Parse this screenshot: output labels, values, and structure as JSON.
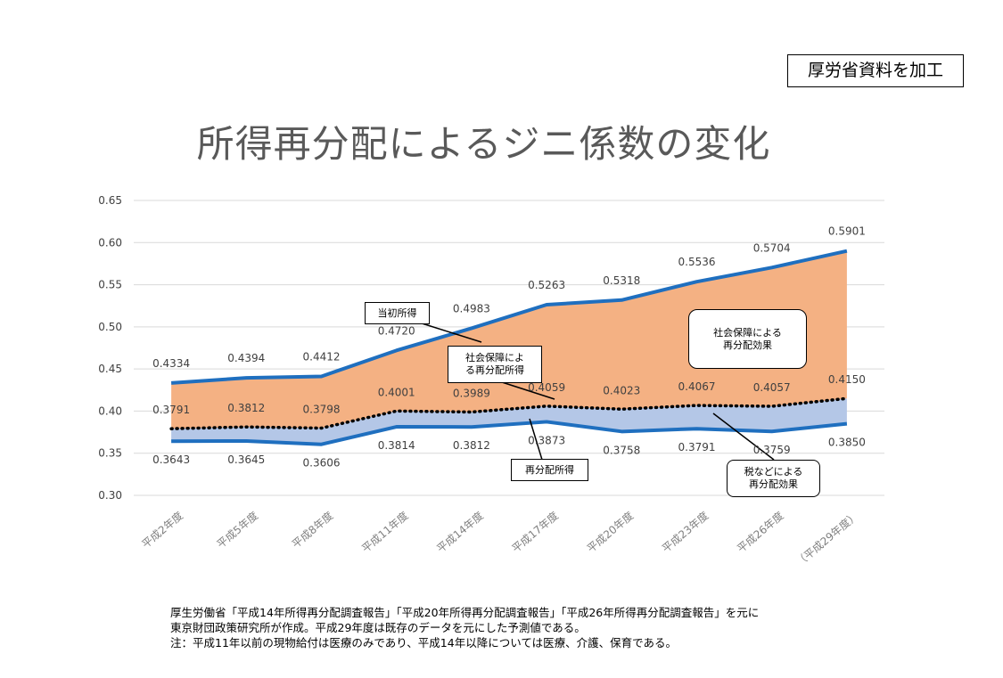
{
  "source_label": "厚労省資料を加工",
  "chart_data": {
    "type": "area",
    "title": "所得再分配によるジニ係数の変化",
    "categories": [
      "平成2年度",
      "平成5年度",
      "平成8年度",
      "平成11年度",
      "平成14年度",
      "平成17年度",
      "平成20年度",
      "平成23年度",
      "平成26年度",
      "（平成29年度）"
    ],
    "ylim": [
      0.3,
      0.65
    ],
    "yticks": [
      "0.30",
      "0.35",
      "0.40",
      "0.45",
      "0.50",
      "0.55",
      "0.60",
      "0.65"
    ],
    "grid": true,
    "series": [
      {
        "name": "当初所得",
        "values": [
          0.4334,
          0.4394,
          0.4412,
          0.472,
          0.4983,
          0.5263,
          0.5318,
          0.5536,
          0.5704,
          0.5901
        ],
        "labels": [
          "0.4334",
          "0.4394",
          "0.4412",
          "0.4720",
          "0.4983",
          "0.5263",
          "0.5318",
          "0.5536",
          "0.5704",
          "0.5901"
        ]
      },
      {
        "name": "社会保障による再分配所得",
        "values": [
          0.3791,
          0.3812,
          0.3798,
          0.4001,
          0.3989,
          0.4059,
          0.4023,
          0.4067,
          0.4057,
          0.415
        ],
        "labels": [
          "0.3791",
          "0.3812",
          "0.3798",
          "0.4001",
          "0.3989",
          "0.4059",
          "0.4023",
          "0.4067",
          "0.4057",
          "0.4150"
        ]
      },
      {
        "name": "再分配所得",
        "values": [
          0.3643,
          0.3645,
          0.3606,
          0.3814,
          0.3812,
          0.3873,
          0.3758,
          0.3791,
          0.3759,
          0.385
        ],
        "labels": [
          "0.3643",
          "0.3645",
          "0.3606",
          "0.3814",
          "0.3812",
          "0.3873",
          "0.3758",
          "0.3791",
          "0.3759",
          "0.3850"
        ]
      }
    ],
    "colors": {
      "initial_line": "#1f6fbf",
      "social_area": "#f4b183",
      "tax_area": "#b4c7e7",
      "grid": "#d9d9d9"
    }
  },
  "callouts": {
    "initial": [
      "当初所得"
    ],
    "social_redist": [
      "社会保障によ",
      "る再分配所得"
    ],
    "social_effect": [
      "社会保障による",
      "再分配効果"
    ],
    "redist": [
      "再分配所得"
    ],
    "tax_effect": [
      "税などによる",
      "再分配効果"
    ]
  },
  "notes": [
    "厚生労働省「平成14年所得再分配調査報告」「平成20年所得再分配調査報告」「平成26年所得再分配調査報告」を元に",
    "東京財団政策研究所が作成。平成29年度は既存のデータを元にした予測値である。",
    "注：平成11年以前の現物給付は医療のみであり、平成14年以降については医療、介護、保育である。"
  ]
}
